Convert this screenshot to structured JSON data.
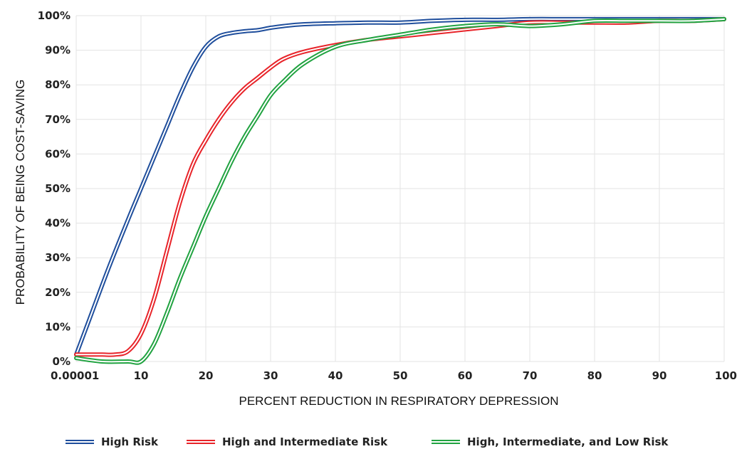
{
  "chart_data": {
    "type": "line",
    "title": "",
    "xlabel": "PERCENT REDUCTION IN RESPIRATORY DEPRESSION",
    "ylabel": "PROBABILITY OF BEING COST-SAVING",
    "x_tick_labels": [
      "0.00001",
      "10",
      "20",
      "30",
      "40",
      "50",
      "60",
      "70",
      "80",
      "90",
      "100"
    ],
    "y_tick_labels": [
      "0%",
      "10%",
      "20%",
      "30%",
      "40%",
      "50%",
      "60%",
      "70%",
      "80%",
      "90%",
      "100%"
    ],
    "xlim": [
      0,
      100
    ],
    "ylim": [
      0,
      100
    ],
    "grid": true,
    "legend_position": "bottom",
    "series": [
      {
        "name": "High Risk",
        "color": "#1f4e9c",
        "x": [
          0,
          2,
          5,
          8,
          10,
          12,
          14,
          16,
          18,
          20,
          22,
          24,
          26,
          28,
          30,
          32,
          35,
          40,
          45,
          50,
          55,
          60,
          65,
          70,
          75,
          80,
          85,
          90,
          95,
          100
        ],
        "y": [
          2,
          12,
          27,
          41,
          50,
          59,
          68,
          77,
          85,
          91,
          94,
          95,
          95.5,
          95.8,
          96.5,
          97,
          97.5,
          97.8,
          98,
          98,
          98.5,
          98.8,
          98.8,
          99,
          99,
          99,
          99,
          99,
          99,
          99
        ]
      },
      {
        "name": "High and Intermediate Risk",
        "color": "#e8242a",
        "x": [
          0,
          2,
          4,
          6,
          8,
          10,
          12,
          14,
          16,
          18,
          20,
          22,
          24,
          26,
          28,
          30,
          32,
          35,
          40,
          45,
          50,
          55,
          60,
          65,
          70,
          75,
          80,
          85,
          90,
          95,
          100
        ],
        "y": [
          2,
          2,
          2,
          2,
          3,
          8,
          18,
          32,
          46,
          57,
          64,
          70,
          75,
          79,
          82,
          85,
          87.5,
          89.5,
          91.5,
          93,
          94,
          95,
          96,
          97,
          98,
          98,
          98,
          98,
          98.5,
          98.5,
          99
        ]
      },
      {
        "name": "High, Intermediate, and Low Risk",
        "color": "#21a341",
        "x": [
          0,
          4,
          8,
          10,
          12,
          14,
          16,
          18,
          20,
          22,
          24,
          26,
          28,
          30,
          32,
          35,
          40,
          45,
          50,
          55,
          60,
          65,
          70,
          75,
          80,
          85,
          90,
          95,
          100
        ],
        "y": [
          1,
          0,
          0,
          0,
          5,
          14,
          24,
          33,
          42,
          50,
          58,
          65,
          71,
          77,
          81,
          86,
          91,
          93,
          94.5,
          96,
          97,
          97.5,
          97,
          97.5,
          98.5,
          98.5,
          98.5,
          98.5,
          99
        ]
      }
    ]
  }
}
